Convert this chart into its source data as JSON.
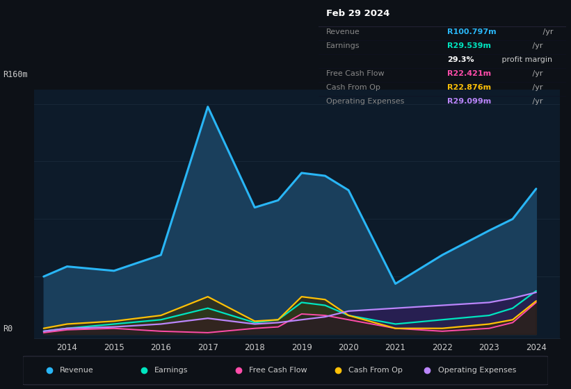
{
  "bg_color": "#0d1117",
  "chart_bg": "#0d1b2a",
  "grid_color": "#1a2a3a",
  "text_color": "#cccccc",
  "dim_text_color": "#888888",
  "ylabel_top": "R160m",
  "ylabel_bottom": "R0",
  "years": [
    2013.5,
    2014,
    2015,
    2016,
    2017,
    2018,
    2018.5,
    2019,
    2019.5,
    2020,
    2021,
    2022,
    2023,
    2023.5,
    2024
  ],
  "revenue": [
    40,
    47,
    44,
    55,
    158,
    88,
    93,
    112,
    110,
    100,
    35,
    55,
    72,
    80,
    101
  ],
  "earnings": [
    2,
    4,
    7,
    10,
    18,
    8,
    10,
    22,
    20,
    13,
    7,
    10,
    13,
    18,
    30
  ],
  "fcf": [
    1,
    3,
    4,
    2,
    1,
    4,
    5,
    14,
    13,
    10,
    4,
    2,
    4,
    8,
    22
  ],
  "cashfromop": [
    4,
    7,
    9,
    13,
    26,
    9,
    10,
    26,
    24,
    13,
    4,
    4,
    7,
    10,
    23
  ],
  "opex": [
    2,
    4,
    5,
    7,
    11,
    7,
    8,
    10,
    12,
    16,
    18,
    20,
    22,
    25,
    29
  ],
  "revenue_color": "#29b6f6",
  "earnings_color": "#00e5c0",
  "fcf_color": "#ff4daa",
  "cashfromop_color": "#ffc107",
  "opex_color": "#bb86fc",
  "info_box": {
    "title": "Feb 29 2024",
    "rows": [
      {
        "label": "Revenue",
        "value": "R100.797m",
        "unit": " /yr",
        "val_color": "#29b6f6",
        "unit_color": "#aaaaaa"
      },
      {
        "label": "Earnings",
        "value": "R29.539m",
        "unit": " /yr",
        "val_color": "#00e5c0",
        "unit_color": "#aaaaaa"
      },
      {
        "label": "",
        "value": "29.3%",
        "unit": " profit margin",
        "val_color": "#ffffff",
        "unit_color": "#cccccc"
      },
      {
        "label": "Free Cash Flow",
        "value": "R22.421m",
        "unit": " /yr",
        "val_color": "#ff4daa",
        "unit_color": "#aaaaaa"
      },
      {
        "label": "Cash From Op",
        "value": "R22.876m",
        "unit": " /yr",
        "val_color": "#ffc107",
        "unit_color": "#aaaaaa"
      },
      {
        "label": "Operating Expenses",
        "value": "R29.099m",
        "unit": " /yr",
        "val_color": "#bb86fc",
        "unit_color": "#aaaaaa"
      }
    ]
  },
  "legend": [
    {
      "label": "Revenue",
      "color": "#29b6f6"
    },
    {
      "label": "Earnings",
      "color": "#00e5c0"
    },
    {
      "label": "Free Cash Flow",
      "color": "#ff4daa"
    },
    {
      "label": "Cash From Op",
      "color": "#ffc107"
    },
    {
      "label": "Operating Expenses",
      "color": "#bb86fc"
    }
  ]
}
